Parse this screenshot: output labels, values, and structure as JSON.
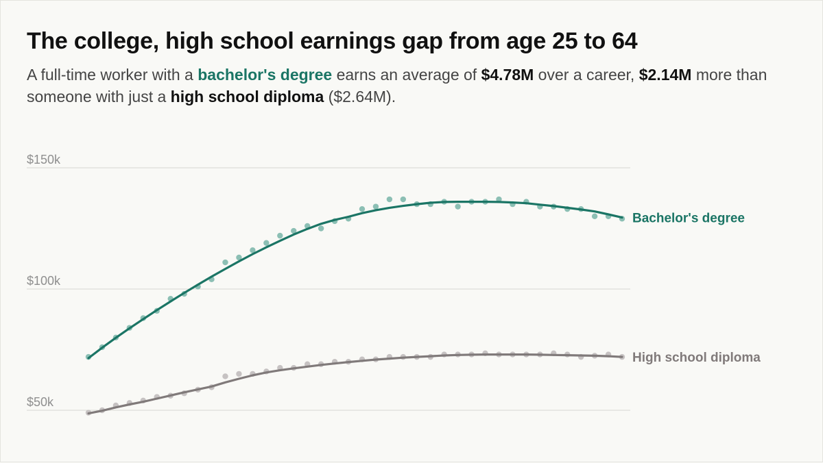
{
  "title": "The college, high school earnings gap from age 25 to 64",
  "subtitle": {
    "t1": "A full-time worker with a ",
    "b1": "bachelor's degree",
    "t2": " earns an average of ",
    "b2": "$4.78M",
    "t3": " over a career, ",
    "b3": "$2.14M",
    "t4": " more than someone with just a ",
    "b4": "high school diploma",
    "t5": " ($2.64M)."
  },
  "chart_data": {
    "type": "scatter",
    "xlim": [
      25,
      64
    ],
    "ylim": [
      50000,
      150000
    ],
    "y_ticks": [
      {
        "value": 150000,
        "label": "$150k"
      },
      {
        "value": 100000,
        "label": "$100k"
      },
      {
        "value": 50000,
        "label": "$50k"
      }
    ],
    "grid": true,
    "series": [
      {
        "name": "Bachelor's degree",
        "color": "#1b7565",
        "point_color": "#8cbfb4",
        "x": [
          25,
          26,
          27,
          28,
          29,
          30,
          31,
          32,
          33,
          34,
          35,
          36,
          37,
          38,
          39,
          40,
          41,
          42,
          43,
          44,
          45,
          46,
          47,
          48,
          49,
          50,
          51,
          52,
          53,
          54,
          55,
          56,
          57,
          58,
          59,
          60,
          61,
          62,
          63,
          64
        ],
        "points": [
          72000,
          76000,
          80000,
          84000,
          88000,
          91000,
          96000,
          98000,
          101000,
          104000,
          111000,
          113000,
          116000,
          119000,
          122000,
          124000,
          126000,
          125000,
          128000,
          129000,
          133000,
          134000,
          137000,
          137000,
          135000,
          135000,
          136000,
          134000,
          136000,
          136000,
          137000,
          135000,
          136000,
          134000,
          134000,
          133000,
          133000,
          130000,
          130000,
          129000
        ],
        "trend": [
          71500,
          75800,
          79900,
          83800,
          87600,
          91300,
          94900,
          98400,
          101800,
          105100,
          108300,
          111400,
          114400,
          117200,
          119900,
          122500,
          124800,
          126900,
          128500,
          129800,
          131300,
          132500,
          133500,
          134300,
          135000,
          135600,
          135900,
          136000,
          136000,
          136000,
          135900,
          135700,
          135400,
          134800,
          134200,
          133500,
          132800,
          132000,
          130800,
          129500
        ]
      },
      {
        "name": "High school diploma",
        "color": "#807a7a",
        "point_color": "#c6c2c2",
        "x": [
          25,
          26,
          27,
          28,
          29,
          30,
          31,
          32,
          33,
          34,
          35,
          36,
          37,
          38,
          39,
          40,
          41,
          42,
          43,
          44,
          45,
          46,
          47,
          48,
          49,
          50,
          51,
          52,
          53,
          54,
          55,
          56,
          57,
          58,
          59,
          60,
          61,
          62,
          63,
          64
        ],
        "points": [
          49000,
          50000,
          52000,
          53000,
          54000,
          55500,
          56000,
          57000,
          58500,
          59500,
          64000,
          65000,
          65000,
          66000,
          67500,
          67500,
          69000,
          69000,
          70000,
          70000,
          71000,
          71000,
          72000,
          72000,
          72000,
          72000,
          73000,
          73000,
          73000,
          73500,
          73000,
          73000,
          73000,
          73000,
          73500,
          73000,
          72000,
          72500,
          73000,
          72000
        ],
        "trend": [
          48700,
          49800,
          51200,
          52400,
          53500,
          54800,
          56100,
          57400,
          58600,
          59800,
          61500,
          63000,
          64400,
          65600,
          66500,
          67300,
          68000,
          68700,
          69300,
          69900,
          70400,
          70900,
          71300,
          71700,
          72000,
          72300,
          72600,
          72800,
          72900,
          73000,
          73000,
          73000,
          73000,
          72900,
          72800,
          72700,
          72600,
          72500,
          72300,
          72000
        ]
      }
    ]
  }
}
